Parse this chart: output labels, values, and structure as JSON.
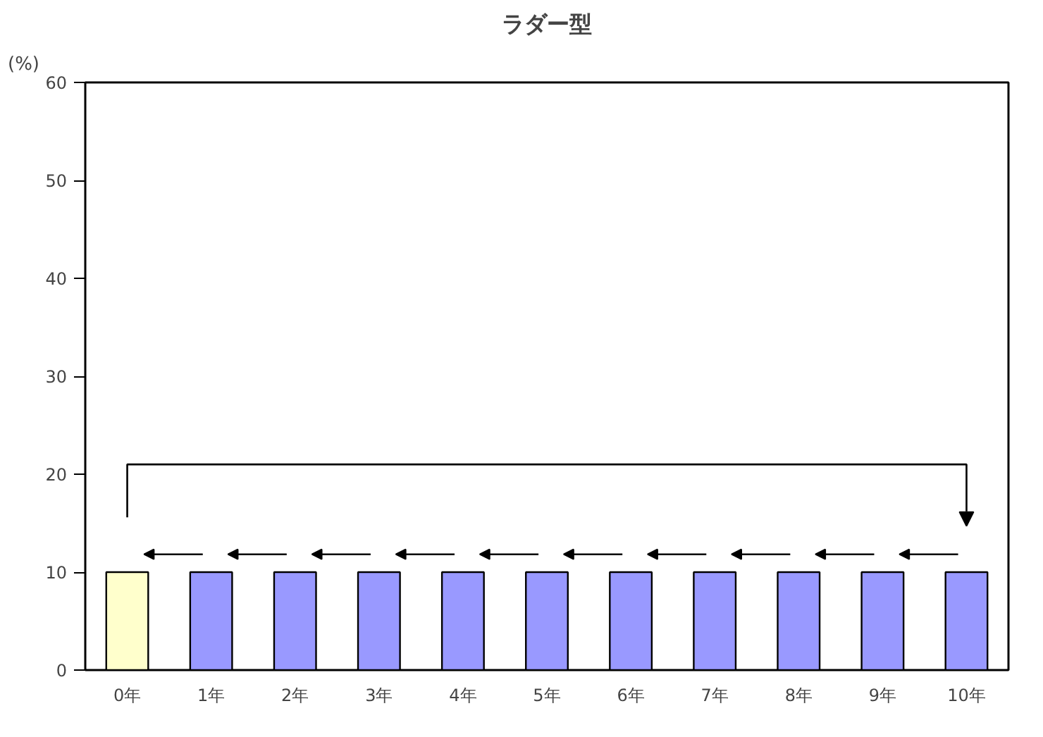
{
  "chart_data": {
    "type": "bar",
    "title": "ラダー型",
    "ylabel": "(%)",
    "categories": [
      "0年",
      "1年",
      "2年",
      "3年",
      "4年",
      "5年",
      "6年",
      "7年",
      "8年",
      "9年",
      "10年"
    ],
    "values": [
      10,
      10,
      10,
      10,
      10,
      10,
      10,
      10,
      10,
      10,
      10
    ],
    "colors": [
      "#ffffcc",
      "#9999ff",
      "#9999ff",
      "#9999ff",
      "#9999ff",
      "#9999ff",
      "#9999ff",
      "#9999ff",
      "#9999ff",
      "#9999ff",
      "#9999ff"
    ],
    "ylim": [
      0,
      60
    ],
    "yticks": [
      0,
      10,
      20,
      30,
      40,
      50,
      60
    ],
    "grid": false
  }
}
